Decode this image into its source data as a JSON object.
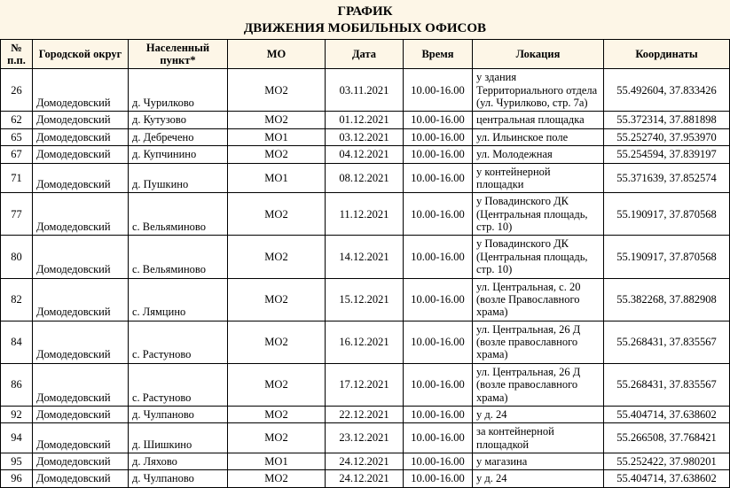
{
  "title": {
    "line1": "ГРАФИК",
    "line2": "ДВИЖЕНИЯ МОБИЛЬНЫХ ОФИСОВ"
  },
  "headers": {
    "num": "№ п.п.",
    "okrug": "Городской округ",
    "np": "Населенный пункт*",
    "mo": "МО",
    "date": "Дата",
    "time": "Время",
    "loc": "Локация",
    "coord": "Координаты"
  },
  "rows": [
    {
      "num": "26",
      "okrug": "Домодедовский",
      "np": "д. Чурилково",
      "mo": "МО2",
      "date": "03.11.2021",
      "time": "10.00-16.00",
      "loc": "у здания Территориального отдела (ул. Чурилково, стр. 7а)",
      "coord": "55.492604, 37.833426"
    },
    {
      "num": "62",
      "okrug": "Домодедовский",
      "np": "д. Кутузово",
      "mo": "МО2",
      "date": "01.12.2021",
      "time": "10.00-16.00",
      "loc": "центральная площадка",
      "coord": "55.372314, 37.881898"
    },
    {
      "num": "65",
      "okrug": "Домодедовский",
      "np": "д. Дебречено",
      "mo": "МО1",
      "date": "03.12.2021",
      "time": "10.00-16.00",
      "loc": "ул. Ильинское поле",
      "coord": "55.252740, 37.953970"
    },
    {
      "num": "67",
      "okrug": "Домодедовский",
      "np": "д. Купчинино",
      "mo": "МО2",
      "date": "04.12.2021",
      "time": "10.00-16.00",
      "loc": "ул. Молодежная",
      "coord": "55.254594, 37.839197"
    },
    {
      "num": "71",
      "okrug": "Домодедовский",
      "np": "д. Пушкино",
      "mo": "МО1",
      "date": "08.12.2021",
      "time": "10.00-16.00",
      "loc": "у контейнерной площадки",
      "coord": "55.371639, 37.852574"
    },
    {
      "num": "77",
      "okrug": "Домодедовский",
      "np": "с. Вельяминово",
      "mo": "МО2",
      "date": "11.12.2021",
      "time": "10.00-16.00",
      "loc": "у Повадинского ДК (Центральная площадь, стр. 10)",
      "coord": "55.190917, 37.870568"
    },
    {
      "num": "80",
      "okrug": "Домодедовский",
      "np": "с. Вельяминово",
      "mo": "МО2",
      "date": "14.12.2021",
      "time": "10.00-16.00",
      "loc": "у Повадинского ДК (Центральная площадь, стр. 10)",
      "coord": "55.190917, 37.870568"
    },
    {
      "num": "82",
      "okrug": "Домодедовский",
      "np": "с. Лямцино",
      "mo": "МО2",
      "date": "15.12.2021",
      "time": "10.00-16.00",
      "loc": "ул. Центральная, с. 20 (возле Православного храма)",
      "coord": "55.382268, 37.882908"
    },
    {
      "num": "84",
      "okrug": "Домодедовский",
      "np": "с. Растуново",
      "mo": "МО2",
      "date": "16.12.2021",
      "time": "10.00-16.00",
      "loc": "ул. Центральная, 26 Д (возле православного храма)",
      "coord": "55.268431, 37.835567"
    },
    {
      "num": "86",
      "okrug": "Домодедовский",
      "np": "с. Растуново",
      "mo": "МО2",
      "date": "17.12.2021",
      "time": "10.00-16.00",
      "loc": "ул. Центральная, 26 Д (возле православного храма)",
      "coord": "55.268431, 37.835567"
    },
    {
      "num": "92",
      "okrug": "Домодедовский",
      "np": "д. Чулпаново",
      "mo": "МО2",
      "date": "22.12.2021",
      "time": "10.00-16.00",
      "loc": "у д. 24",
      "coord": "55.404714, 37.638602"
    },
    {
      "num": "94",
      "okrug": "Домодедовский",
      "np": "д. Шишкино",
      "mo": "МО2",
      "date": "23.12.2021",
      "time": "10.00-16.00",
      "loc": "за контейнерной площадкой",
      "coord": "55.266508, 37.768421"
    },
    {
      "num": "95",
      "okrug": "Домодедовский",
      "np": "д. Ляхово",
      "mo": "МО1",
      "date": "24.12.2021",
      "time": "10.00-16.00",
      "loc": "у магазина",
      "coord": "55.252422, 37.980201"
    },
    {
      "num": "96",
      "okrug": "Домодедовский",
      "np": "д. Чулпаново",
      "mo": "МО2",
      "date": "24.12.2021",
      "time": "10.00-16.00",
      "loc": "у д. 24",
      "coord": "55.404714, 37.638602"
    }
  ]
}
